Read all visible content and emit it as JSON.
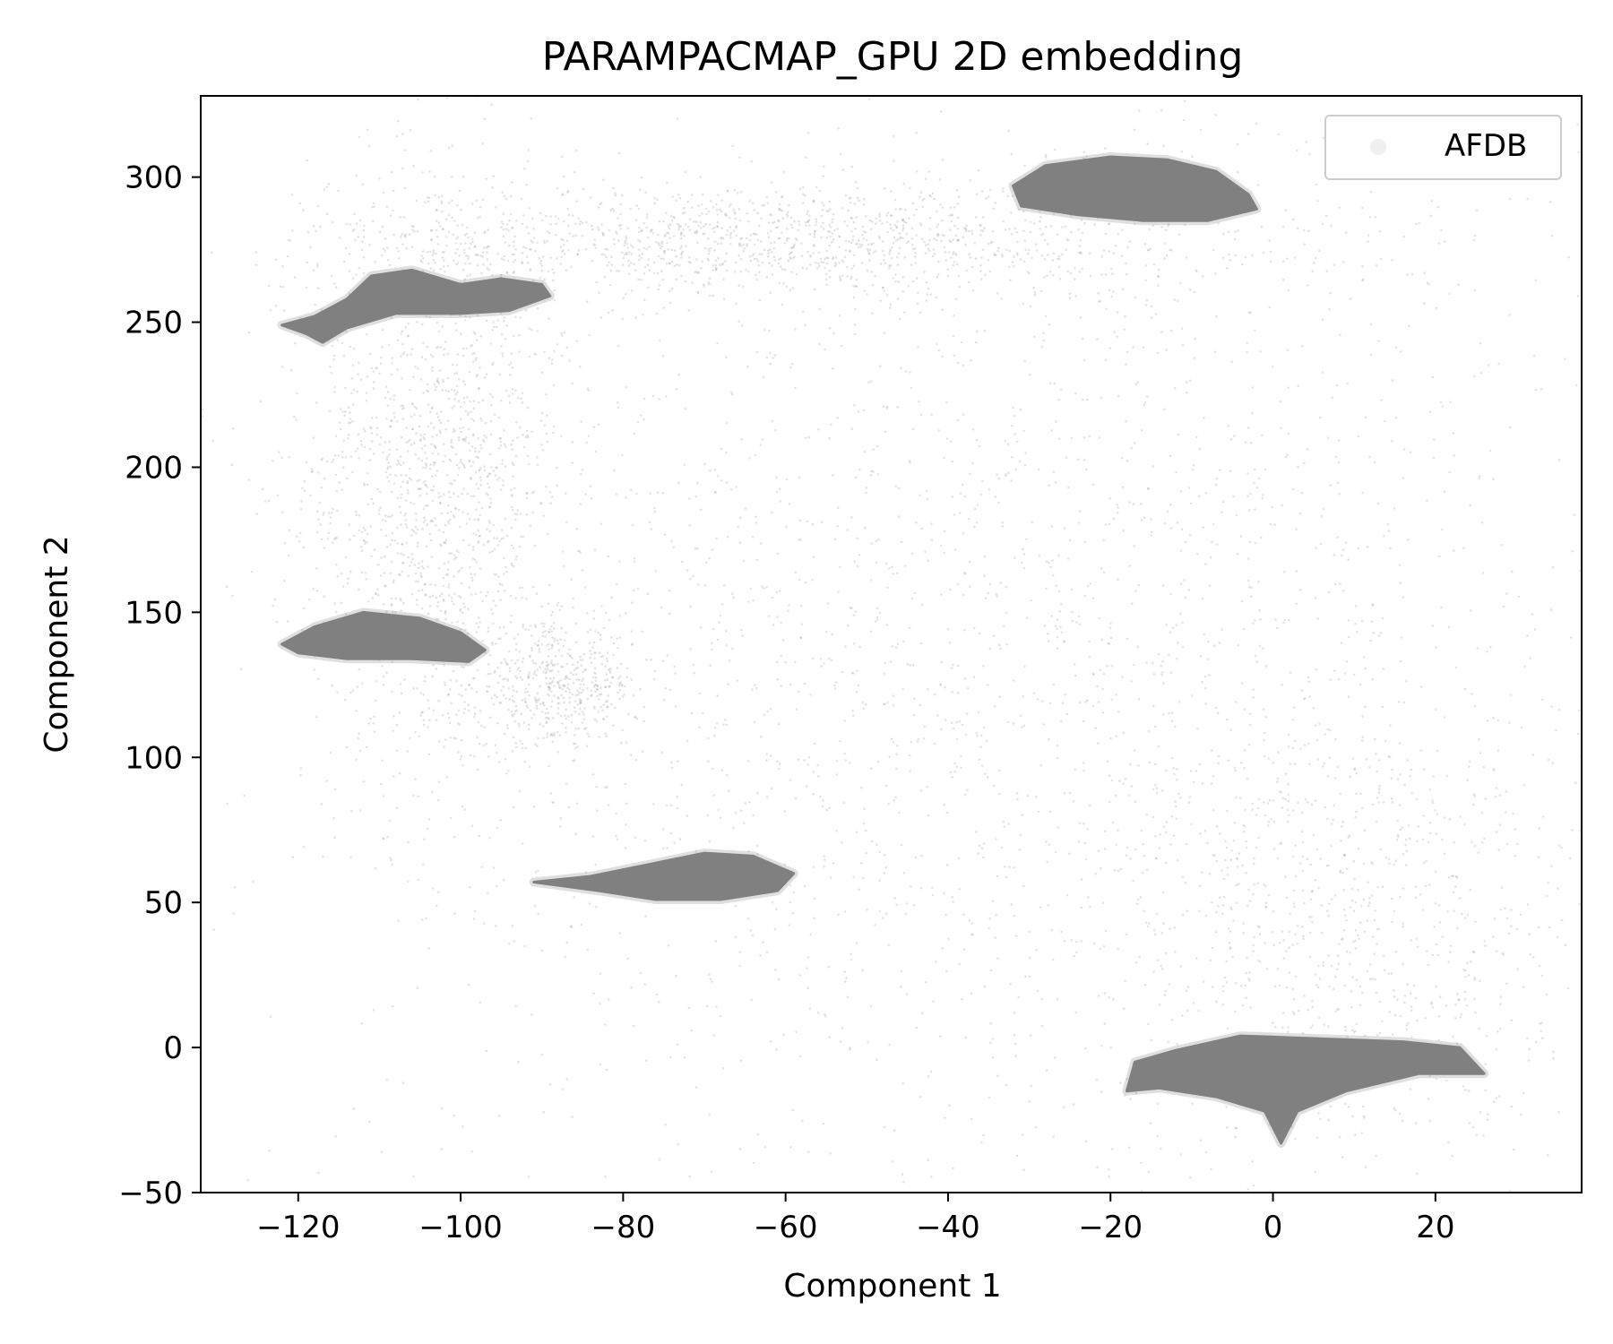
{
  "chart_data": {
    "type": "scatter",
    "title": "PARAMPACMAP_GPU 2D embedding",
    "xlabel": "Component 1",
    "ylabel": "Component 2",
    "xlim": [
      -132,
      38
    ],
    "ylim": [
      -50,
      328
    ],
    "xticks": [
      -120,
      -100,
      -80,
      -60,
      -40,
      -20,
      0,
      20
    ],
    "yticks": [
      -50,
      0,
      50,
      100,
      150,
      200,
      250,
      300
    ],
    "grid": false,
    "legend": {
      "position": "top-right",
      "entries": [
        "AFDB"
      ]
    },
    "colors": {
      "points": "#808080",
      "axis": "#000000",
      "legend_border": "#cccccc"
    },
    "series": [
      {
        "name": "AFDB",
        "dense_clusters": [
          {
            "outline": [
              [
                -122,
                249
              ],
              [
                -118,
                252
              ],
              [
                -114,
                258
              ],
              [
                -111,
                266
              ],
              [
                -106,
                268
              ],
              [
                -100,
                263
              ],
              [
                -95,
                265
              ],
              [
                -90,
                263
              ],
              [
                -89,
                259
              ],
              [
                -94,
                254
              ],
              [
                -100,
                253
              ],
              [
                -108,
                253
              ],
              [
                -114,
                248
              ],
              [
                -117,
                243
              ],
              [
                -119,
                246
              ]
            ]
          },
          {
            "outline": [
              [
                -122,
                139
              ],
              [
                -118,
                145
              ],
              [
                -112,
                150
              ],
              [
                -105,
                148
              ],
              [
                -100,
                143
              ],
              [
                -97,
                137
              ],
              [
                -99,
                133
              ],
              [
                -106,
                134
              ],
              [
                -114,
                134
              ],
              [
                -120,
                136
              ]
            ]
          },
          {
            "outline": [
              [
                -91,
                57
              ],
              [
                -84,
                59
              ],
              [
                -77,
                63
              ],
              [
                -70,
                67
              ],
              [
                -64,
                66
              ],
              [
                -59,
                60
              ],
              [
                -61,
                54
              ],
              [
                -68,
                51
              ],
              [
                -76,
                51
              ],
              [
                -83,
                54
              ]
            ]
          },
          {
            "outline": [
              [
                -32,
                297
              ],
              [
                -28,
                304
              ],
              [
                -20,
                307
              ],
              [
                -13,
                306
              ],
              [
                -7,
                302
              ],
              [
                -3,
                294
              ],
              [
                -2,
                289
              ],
              [
                -8,
                285
              ],
              [
                -16,
                285
              ],
              [
                -24,
                287
              ],
              [
                -31,
                290
              ]
            ]
          },
          {
            "outline": [
              [
                -18,
                -15
              ],
              [
                -17,
                -5
              ],
              [
                -12,
                -1
              ],
              [
                -4,
                4
              ],
              [
                6,
                3
              ],
              [
                16,
                2
              ],
              [
                23,
                0
              ],
              [
                26,
                -9
              ],
              [
                18,
                -9
              ],
              [
                9,
                -15
              ],
              [
                3,
                -22
              ],
              [
                1,
                -33
              ],
              [
                -1,
                -22
              ],
              [
                -7,
                -17
              ],
              [
                -14,
                -14
              ]
            ]
          }
        ],
        "sparse_regions": [
          {
            "center": [
              -103,
              200
            ],
            "spread": [
              8,
              55
            ],
            "count": 1500
          },
          {
            "center": [
              -60,
              278
            ],
            "spread": [
              28,
              10
            ],
            "count": 1300
          },
          {
            "center": [
              -88,
              125
            ],
            "spread": [
              5,
              10
            ],
            "count": 450
          },
          {
            "center": [
              -55,
              120
            ],
            "spread": [
              35,
              90
            ],
            "count": 1400
          },
          {
            "center": [
              -10,
              150
            ],
            "spread": [
              35,
              110
            ],
            "count": 1300
          },
          {
            "center": [
              10,
              40
            ],
            "spread": [
              15,
              40
            ],
            "count": 700
          }
        ]
      }
    ]
  }
}
